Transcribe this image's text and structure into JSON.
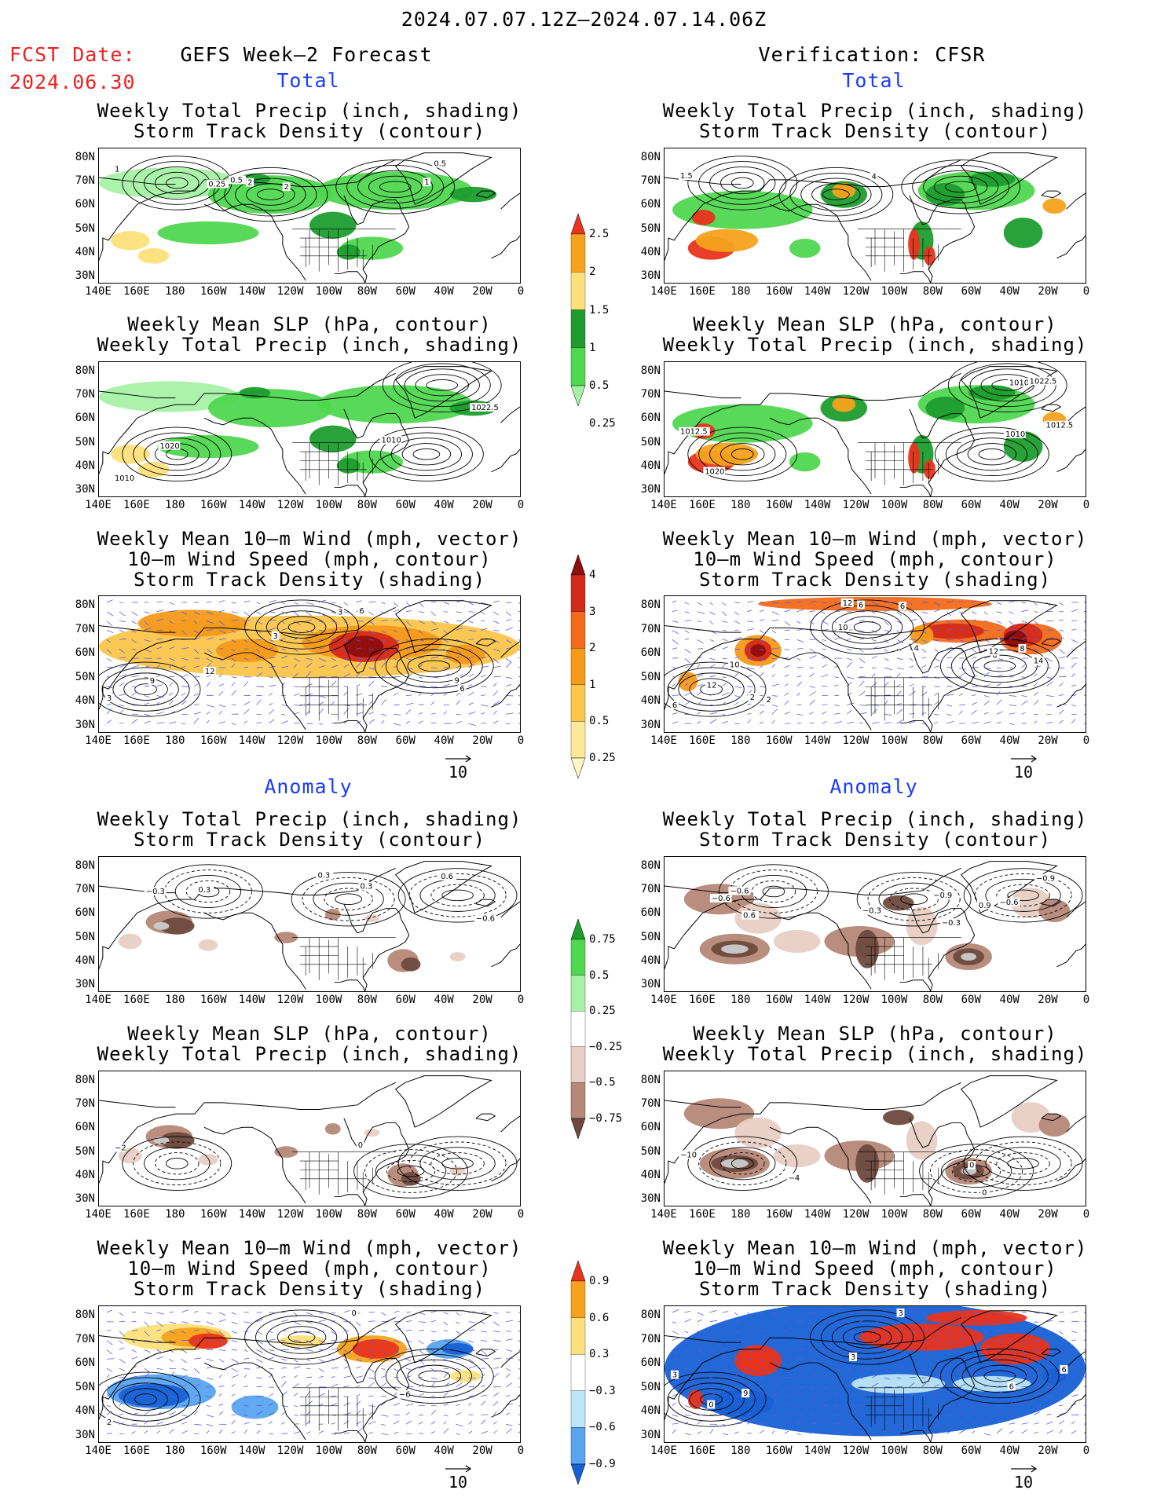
{
  "header": {
    "period": "2024.07.07.12Z—2024.07.14.06Z",
    "fcst_label": "FCST Date:",
    "fcst_date": "2024.06.30",
    "left_title": "GEFS Week—2 Forecast",
    "right_title": "Verification: CFSR"
  },
  "sections": {
    "total": "Total",
    "anomaly": "Anomaly"
  },
  "panel_titles": {
    "precip": [
      "Weekly Total Precip (inch, shading)",
      "Storm Track Density (contour)"
    ],
    "slp": [
      "Weekly Mean SLP (hPa, contour)",
      "Weekly Total Precip (inch, shading)"
    ],
    "wind": [
      "Weekly Mean 10—m Wind (mph, vector)",
      "10—m Wind Speed (mph, contour)",
      "Storm Track Density (shading)"
    ]
  },
  "axes": {
    "lat": [
      "80N",
      "70N",
      "60N",
      "50N",
      "40N",
      "30N"
    ],
    "lon": [
      "140E",
      "160E",
      "180",
      "160W",
      "140W",
      "120W",
      "100W",
      "80W",
      "60W",
      "40W",
      "20W",
      "0"
    ]
  },
  "vector_ref": "10",
  "colorbars": {
    "precip_total": {
      "labels": [
        "2.5",
        "2",
        "1.5",
        "1",
        "0.5",
        "0.25"
      ],
      "colors": [
        "#e8341c",
        "#f6a21c",
        "#fde07a",
        "#1e9d2e",
        "#50d750",
        "#a6f1a6"
      ]
    },
    "storm_total": {
      "labels": [
        "4",
        "3",
        "2",
        "1",
        "0.5",
        "0.25"
      ],
      "colors": [
        "#8e0e0e",
        "#d42a1a",
        "#f26a1a",
        "#f69a1a",
        "#fbc64a",
        "#fde89a",
        "#fdf7c6"
      ]
    },
    "precip_anom": {
      "labels": [
        "0.75",
        "0.5",
        "0.25",
        "−0.25",
        "−0.5",
        "−0.75"
      ],
      "colors": [
        "#1e9d2e",
        "#50d750",
        "#a6f1a6",
        "#ffffff",
        "#e8cfc4",
        "#b58878",
        "#6e4a3e"
      ]
    },
    "storm_anom": {
      "labels": [
        "0.9",
        "0.6",
        "0.3",
        "−0.3",
        "−0.6",
        "−0.9"
      ],
      "colors": [
        "#e8341c",
        "#f6a21c",
        "#fde07a",
        "#ffffff",
        "#bde6f6",
        "#58a4f0",
        "#1660d4"
      ]
    }
  },
  "contour_labels": {
    "fc_total_precip": [
      "1",
      "2",
      "0.5",
      "0.25",
      "2",
      "1",
      "0.5"
    ],
    "fc_total_slp": [
      "1010",
      "1010",
      "1022.5",
      "1020"
    ],
    "fc_total_wind": [
      "3",
      "6",
      "9",
      "12",
      "3",
      "6",
      "9",
      "3"
    ],
    "vf_total_precip": [
      "1.5",
      "4"
    ],
    "vf_total_slp": [
      "1012.5",
      "1010",
      "1010",
      "1020",
      "1012.5",
      "1022.5"
    ],
    "vf_total_wind": [
      "6",
      "6",
      "6",
      "2",
      "6",
      "8",
      "2",
      "4",
      "12",
      "10",
      "12",
      "14",
      "12",
      "10"
    ],
    "fc_anom_precip": [
      "−0.3",
      "0.3",
      "0.6",
      "0.3",
      "0.3",
      "−0.6"
    ],
    "fc_anom_slp": [
      "−2",
      "0"
    ],
    "fc_anom_wind": [
      "2",
      "0",
      "−6"
    ],
    "vf_anom_precip": [
      "−0.6",
      "−0.3",
      "0.9",
      "0.6",
      "−0.3",
      "−0.9",
      "−0.6",
      "−0.9",
      "−0.6"
    ],
    "vf_anom_slp": [
      "−10",
      "0",
      "0",
      "−4"
    ],
    "vf_anom_wind": [
      "3",
      "3",
      "6",
      "0",
      "3",
      "6",
      "9"
    ]
  }
}
